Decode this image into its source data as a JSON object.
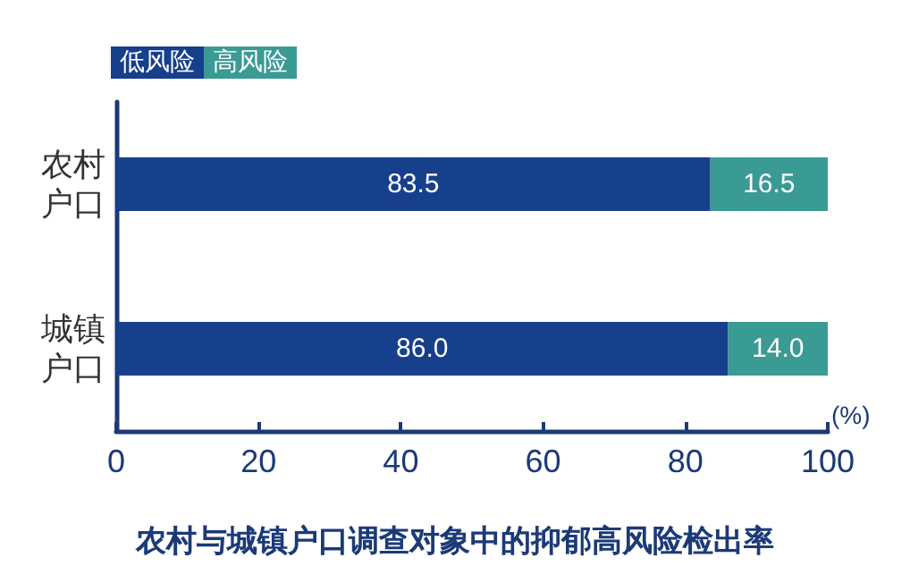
{
  "chart_data": {
    "type": "bar",
    "orientation": "horizontal",
    "stacked": true,
    "title": "农村与城镇户口调查对象中的抑郁高风险检出率",
    "xlabel": "(%)",
    "categories": [
      "农村户口",
      "城镇户口"
    ],
    "series": [
      {
        "name": "低风险",
        "color": "#163f8c",
        "values": [
          83.5,
          86.0
        ],
        "value_labels": [
          "83.5",
          "86.0"
        ]
      },
      {
        "name": "高风险",
        "color": "#3a9a94",
        "values": [
          16.5,
          14.0
        ],
        "value_labels": [
          "16.5",
          "14.0"
        ]
      }
    ],
    "xlim": [
      0,
      100
    ],
    "xticks": [
      0,
      20,
      40,
      60,
      80,
      100
    ],
    "legend": "top left",
    "grid": false
  }
}
